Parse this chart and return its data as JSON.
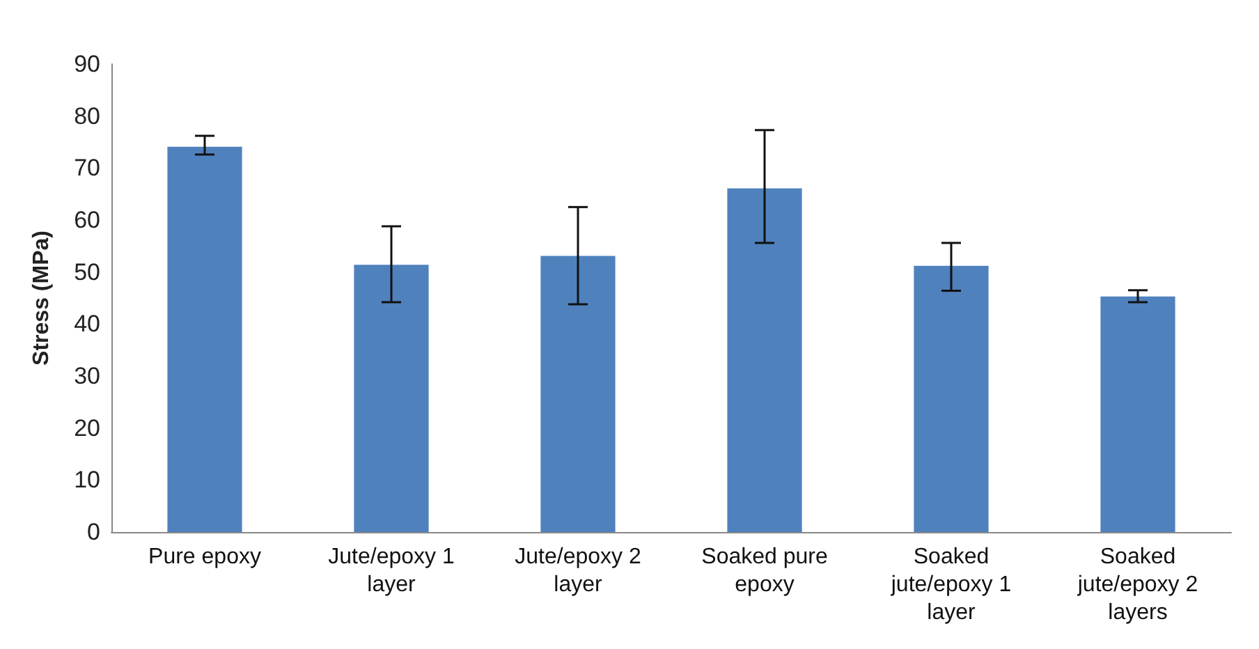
{
  "chart_data": {
    "type": "bar",
    "ylabel": "Stress (MPa)",
    "categories": [
      "Pure epoxy",
      "Jute/epoxy 1 layer",
      "Jute/epoxy 2 layer",
      "Soaked pure epoxy",
      "Soaked jute/epoxy 1 layer",
      "Soaked jute/epoxy 2 layers"
    ],
    "values": [
      74.1,
      51.4,
      53.1,
      66.1,
      51.2,
      45.3
    ],
    "errors": [
      [
        72.6,
        76.2
      ],
      [
        44.2,
        58.8
      ],
      [
        43.8,
        62.5
      ],
      [
        55.6,
        77.3
      ],
      [
        46.4,
        55.6
      ],
      [
        44.2,
        46.5
      ]
    ],
    "color": "#4f81bd",
    "ylim": [
      0,
      90
    ],
    "yticks": [
      0,
      10,
      20,
      30,
      40,
      50,
      60,
      70,
      80,
      90
    ],
    "grid": false
  }
}
